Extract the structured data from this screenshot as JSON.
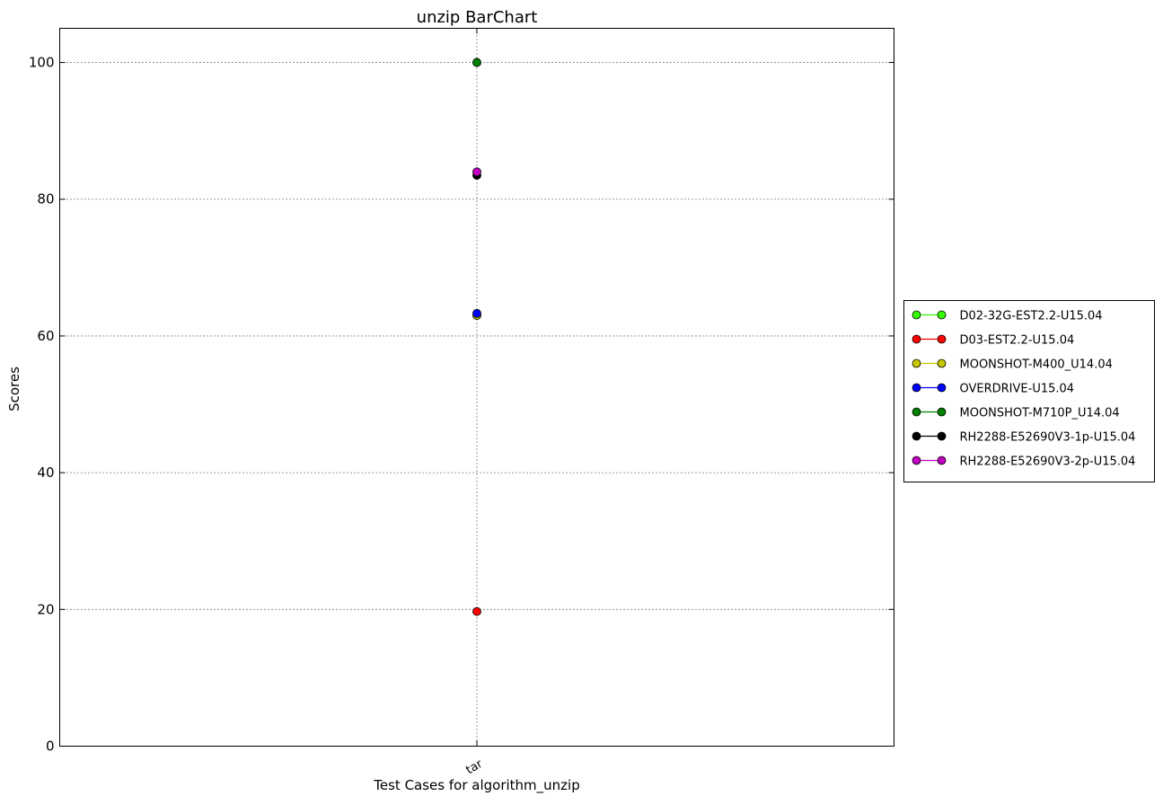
{
  "chart_data": {
    "type": "scatter",
    "title": "unzip BarChart",
    "xlabel": "Test Cases for algorithm_unzip",
    "ylabel": "Scores",
    "categories": [
      "tar"
    ],
    "ylim": [
      0,
      105
    ],
    "yticks": [
      0,
      20,
      40,
      60,
      80,
      100
    ],
    "grid": true,
    "legend_position": "center-right outside",
    "series": [
      {
        "name": "D02-32G-EST2.2-U15.04",
        "color": "#33ff00",
        "values": [
          100
        ]
      },
      {
        "name": "D03-EST2.2-U15.04",
        "color": "#ff0000",
        "values": [
          19.7
        ]
      },
      {
        "name": "MOONSHOT-M400_U14.04",
        "color": "#c8c800",
        "values": [
          63.0
        ]
      },
      {
        "name": "OVERDRIVE-U15.04",
        "color": "#0000ff",
        "values": [
          63.3
        ]
      },
      {
        "name": "MOONSHOT-M710P_U14.04",
        "color": "#008000",
        "values": [
          100
        ]
      },
      {
        "name": "RH2288-E52690V3-1p-U15.04",
        "color": "#000000",
        "values": [
          83.5
        ]
      },
      {
        "name": "RH2288-E52690V3-2p-U15.04",
        "color": "#c000c0",
        "values": [
          84.0
        ]
      }
    ]
  }
}
